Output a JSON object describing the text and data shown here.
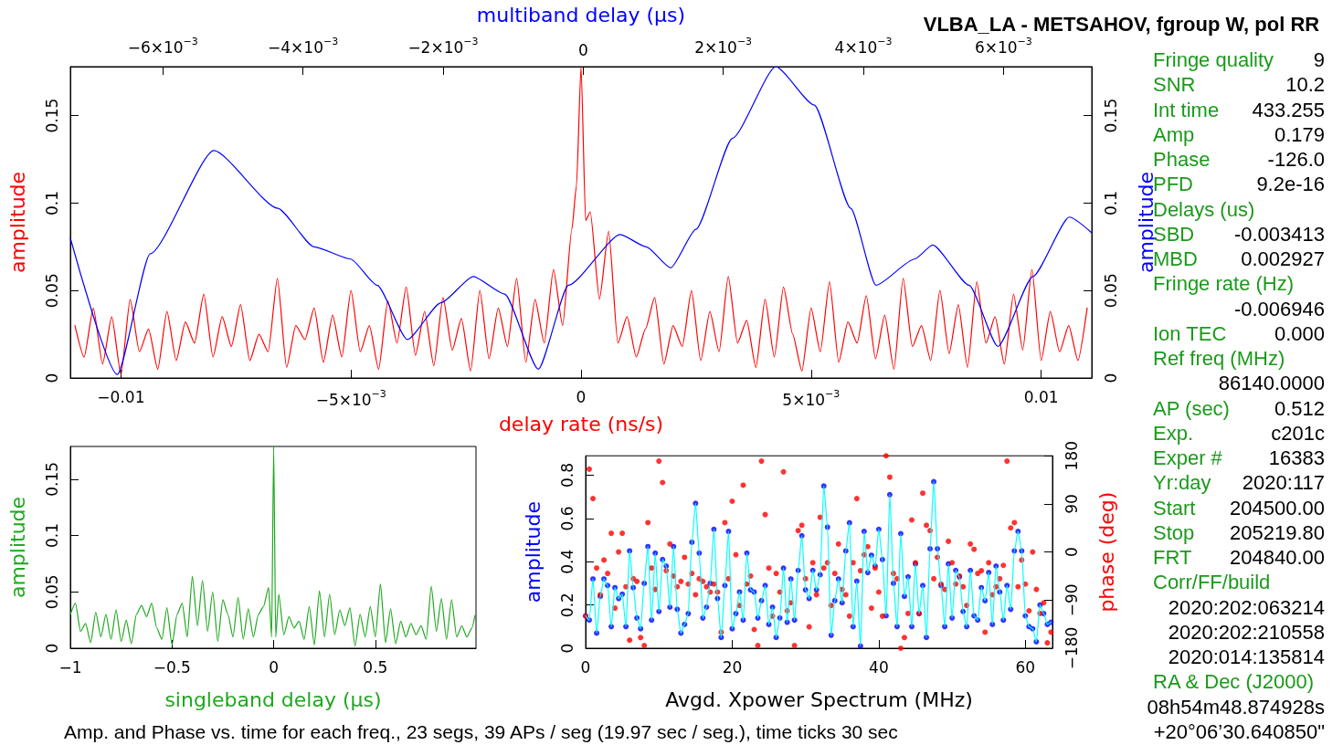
{
  "chart_data": [
    {
      "type": "line",
      "title": "VLBA_LA - METSAHOV, fgroup W, pol RR",
      "xlabel": "delay rate (ns/s)",
      "x2label": "multiband delay (μs)",
      "ylabel": "amplitude",
      "y2label": "amplitude",
      "marker": "none",
      "line_style": "solid",
      "grid": false,
      "xlim": [
        -0.0111,
        0.0111
      ],
      "xticks": [
        {
          "value": -0.01,
          "label": "−0.01"
        },
        {
          "value": -0.005,
          "label": "−5×10$^{−3}$"
        },
        0,
        {
          "value": 0.005,
          "label": "5×10$^{−3}$"
        },
        0.01
      ],
      "x2lim": [
        -0.00732,
        0.00726
      ],
      "x2ticks": [
        {
          "value": -0.006,
          "label": "−6×10$^{−3}$"
        },
        {
          "value": -0.004,
          "label": "−4×10$^{−3}$"
        },
        {
          "value": -0.002,
          "label": "−2×10$^{−3}$"
        },
        0,
        {
          "value": 0.002,
          "label": "2×10$^{−3}$"
        },
        {
          "value": 0.004,
          "label": "4×10$^{−3}$"
        },
        {
          "value": 0.006,
          "label": "6×10$^{−3}$"
        }
      ],
      "ylim": [
        0,
        0.178
      ],
      "yticks": [
        0,
        0.05,
        0.1,
        0.15
      ],
      "y2lim": [
        0,
        0.178
      ],
      "y2ticks": [
        0,
        0.05,
        0.1,
        0.15
      ],
      "series": [
        {
          "type": "line",
          "color": "#ff0000",
          "x": [
            -0.011,
            -0.0108,
            -0.0106,
            -0.0104,
            -0.0102,
            -0.01,
            -0.0098,
            -0.0096,
            -0.0094,
            -0.0092,
            -0.009,
            -0.0088,
            -0.0086,
            -0.0084,
            -0.0082,
            -0.008,
            -0.0078,
            -0.0076,
            -0.0074,
            -0.0072,
            -0.007,
            -0.0068,
            -0.0066,
            -0.0064,
            -0.0062,
            -0.006,
            -0.0058,
            -0.0056,
            -0.0054,
            -0.0052,
            -0.005,
            -0.0048,
            -0.0046,
            -0.0044,
            -0.0042,
            -0.004,
            -0.0038,
            -0.0036,
            -0.0034,
            -0.0032,
            -0.003,
            -0.0028,
            -0.0026,
            -0.0024,
            -0.0022,
            -0.002,
            -0.0018,
            -0.0016,
            -0.0014,
            -0.0012,
            -0.001,
            -0.0008,
            -0.0006,
            -0.0004,
            -0.0002,
            -0.0001,
            0,
            0.0001,
            0.0002,
            0.0004,
            0.0006,
            0.0008,
            0.001,
            0.0012,
            0.0014,
            0.0016,
            0.0018,
            0.002,
            0.0022,
            0.0024,
            0.0026,
            0.0028,
            0.003,
            0.0032,
            0.0034,
            0.0036,
            0.0038,
            0.004,
            0.0042,
            0.0044,
            0.0046,
            0.0048,
            0.005,
            0.0052,
            0.0054,
            0.0056,
            0.0058,
            0.006,
            0.0062,
            0.0064,
            0.0066,
            0.0068,
            0.007,
            0.0072,
            0.0074,
            0.0076,
            0.0078,
            0.008,
            0.0082,
            0.0084,
            0.0086,
            0.0088,
            0.009,
            0.0092,
            0.0094,
            0.0096,
            0.0098,
            0.01,
            0.0102,
            0.0104,
            0.0106,
            0.0108,
            0.011
          ],
          "values": [
            0.03,
            0.012,
            0.04,
            0.008,
            0.035,
            0.002,
            0.045,
            0.015,
            0.028,
            0.005,
            0.038,
            0.01,
            0.032,
            0.02,
            0.048,
            0.012,
            0.035,
            0.018,
            0.042,
            0.01,
            0.025,
            0.015,
            0.057,
            0.006,
            0.03,
            0.022,
            0.04,
            0.009,
            0.036,
            0.012,
            0.05,
            0.015,
            0.03,
            0.005,
            0.044,
            0.02,
            0.052,
            0.013,
            0.038,
            0.007,
            0.046,
            0.016,
            0.034,
            0.004,
            0.05,
            0.011,
            0.04,
            0.018,
            0.057,
            0.009,
            0.045,
            0.02,
            0.062,
            0.03,
            0.085,
            0.11,
            0.178,
            0.09,
            0.095,
            0.045,
            0.084,
            0.02,
            0.035,
            0.012,
            0.028,
            0.046,
            0.008,
            0.03,
            0.018,
            0.05,
            0.01,
            0.038,
            0.015,
            0.058,
            0.02,
            0.033,
            0.006,
            0.045,
            0.012,
            0.052,
            0.025,
            0.004,
            0.04,
            0.015,
            0.055,
            0.009,
            0.032,
            0.02,
            0.047,
            0.011,
            0.036,
            0.005,
            0.057,
            0.018,
            0.03,
            0.01,
            0.05,
            0.014,
            0.042,
            0.006,
            0.055,
            0.02,
            0.035,
            0.008,
            0.048,
            0.016,
            0.062,
            0.01,
            0.038,
            0.015,
            0.03,
            0.01,
            0.04
          ]
        },
        {
          "type": "line",
          "color": "#0000ff",
          "axis": "x2",
          "x": [
            -0.00732,
            -0.00665,
            -0.00618,
            -0.00527,
            -0.00436,
            -0.00384,
            -0.00332,
            -0.00294,
            -0.00251,
            -0.00203,
            -0.00157,
            -0.00112,
            -0.00064,
            -0.00021,
            0.00053,
            0.0009,
            0.00125,
            0.00161,
            0.00213,
            0.00275,
            0.0033,
            0.00382,
            0.00418,
            0.00473,
            0.00499,
            0.00551,
            0.00592,
            0.00642,
            0.00694,
            0.00726
          ],
          "values": [
            0.08,
            0.002,
            0.071,
            0.13,
            0.097,
            0.075,
            0.068,
            0.053,
            0.022,
            0.043,
            0.058,
            0.048,
            0.005,
            0.053,
            0.082,
            0.075,
            0.063,
            0.085,
            0.137,
            0.178,
            0.156,
            0.097,
            0.053,
            0.068,
            0.076,
            0.053,
            0.018,
            0.058,
            0.092,
            0.083
          ]
        }
      ]
    },
    {
      "type": "line",
      "xlabel": "singleband delay (μs)",
      "ylabel": "amplitude",
      "marker": "none",
      "line_style": "solid",
      "grid": false,
      "xlim": [
        -1,
        0.995
      ],
      "xticks": [
        {
          "value": -1,
          "label": "−1"
        },
        {
          "value": -0.5,
          "label": "−0.5"
        },
        0,
        0.5
      ],
      "ylim": [
        0,
        0.179
      ],
      "yticks": [
        0,
        0.05,
        0.1,
        0.15
      ],
      "series": [
        {
          "type": "line",
          "color": "#1fa81f",
          "x": [
            -1,
            -0.975,
            -0.95,
            -0.925,
            -0.9,
            -0.875,
            -0.85,
            -0.825,
            -0.8,
            -0.775,
            -0.75,
            -0.725,
            -0.7,
            -0.675,
            -0.65,
            -0.625,
            -0.6,
            -0.575,
            -0.55,
            -0.525,
            -0.5,
            -0.475,
            -0.45,
            -0.425,
            -0.4,
            -0.375,
            -0.35,
            -0.325,
            -0.3,
            -0.275,
            -0.25,
            -0.225,
            -0.2,
            -0.175,
            -0.15,
            -0.125,
            -0.1,
            -0.075,
            -0.05,
            -0.025,
            -0.01,
            0,
            0.01,
            0.025,
            0.05,
            0.075,
            0.1,
            0.125,
            0.15,
            0.175,
            0.2,
            0.225,
            0.25,
            0.275,
            0.3,
            0.325,
            0.35,
            0.375,
            0.4,
            0.425,
            0.45,
            0.475,
            0.5,
            0.525,
            0.55,
            0.575,
            0.6,
            0.625,
            0.65,
            0.675,
            0.7,
            0.725,
            0.75,
            0.775,
            0.8,
            0.825,
            0.85,
            0.875,
            0.9,
            0.925,
            0.95,
            0.975,
            0.99
          ],
          "values": [
            0.03,
            0.04,
            0.015,
            0.022,
            0.005,
            0.032,
            0.01,
            0.03,
            0.008,
            0.034,
            0.006,
            0.025,
            0.004,
            0.03,
            0.038,
            0.028,
            0.04,
            0.018,
            0.008,
            0.036,
            0.003,
            0.03,
            0.04,
            0.01,
            0.064,
            0.02,
            0.06,
            0.015,
            0.05,
            0.006,
            0.043,
            0.03,
            0.01,
            0.045,
            0.008,
            0.035,
            0.01,
            0.03,
            0.037,
            0.054,
            0.01,
            0.179,
            0.01,
            0.048,
            0.012,
            0.028,
            0.018,
            0.024,
            0.008,
            0.037,
            0.003,
            0.051,
            0.01,
            0.048,
            0.012,
            0.034,
            0.02,
            0.036,
            0.002,
            0.03,
            0.01,
            0.037,
            0.01,
            0.057,
            0.005,
            0.035,
            0.004,
            0.024,
            0.01,
            0.022,
            0.012,
            0.02,
            0.008,
            0.055,
            0.015,
            0.044,
            0.008,
            0.043,
            0.01,
            0.02,
            0.01,
            0.018,
            0.029
          ]
        }
      ]
    },
    {
      "type": "line",
      "xlabel": "Avgd. Xpower Spectrum (MHz)",
      "ylabel": "amplitude",
      "y2label": "phase (deg)",
      "grid": false,
      "xlim": [
        0,
        63.7
      ],
      "xticks": [
        0,
        20,
        40,
        60
      ],
      "ylim": [
        0,
        0.89
      ],
      "yticks": [
        0,
        0.2,
        0.4,
        0.6,
        0.8
      ],
      "y2lim": [
        -180,
        180
      ],
      "y2ticks": [
        {
          "value": -180,
          "label": "−180"
        },
        {
          "value": -90,
          "label": "−90"
        },
        0,
        90,
        180
      ],
      "x": [
        0,
        0.5,
        1,
        1.5,
        2,
        2.5,
        3,
        3.5,
        4,
        4.5,
        5,
        5.5,
        6,
        6.5,
        7,
        7.5,
        8,
        8.5,
        9,
        9.5,
        10,
        10.5,
        11,
        11.5,
        12,
        12.5,
        13,
        13.5,
        14,
        14.5,
        15,
        15.5,
        16,
        16.5,
        17,
        17.5,
        18,
        18.5,
        19,
        19.5,
        20,
        20.5,
        21,
        21.5,
        22,
        22.5,
        23,
        23.5,
        24,
        24.5,
        25,
        25.5,
        26,
        26.5,
        27,
        27.5,
        28,
        28.5,
        29,
        29.5,
        30,
        30.5,
        31,
        31.5,
        32,
        32.5,
        33,
        33.5,
        34,
        34.5,
        35,
        35.5,
        36,
        36.5,
        37,
        37.5,
        38,
        38.5,
        39,
        39.5,
        40,
        40.5,
        41,
        41.5,
        42,
        42.5,
        43,
        43.5,
        44,
        44.5,
        45,
        45.5,
        46,
        46.5,
        47,
        47.5,
        48,
        48.5,
        49,
        49.5,
        50,
        50.5,
        51,
        51.5,
        52,
        52.5,
        53,
        53.5,
        54,
        54.5,
        55,
        55.5,
        56,
        56.5,
        57,
        57.5,
        58,
        58.5,
        59,
        59.5,
        60,
        60.5,
        61,
        61.5,
        62,
        62.5,
        63,
        63.5
      ],
      "series": [
        {
          "type": "line",
          "color": "#00ffff",
          "marker": "none",
          "line_style": "solid",
          "values": [
            0.15,
            0.13,
            0.32,
            0.07,
            0.24,
            0.32,
            0.29,
            0.1,
            0.28,
            0.23,
            0.25,
            0.1,
            0.45,
            0.28,
            0.14,
            0.09,
            0.3,
            0.47,
            0.13,
            0.44,
            0.17,
            0.41,
            0.38,
            0.19,
            0.47,
            0.18,
            0.07,
            0.11,
            0.16,
            0.49,
            0.67,
            0.44,
            0.14,
            0.19,
            0.3,
            0.55,
            0.23,
            0.05,
            0.29,
            0.54,
            0.09,
            0.16,
            0.26,
            0.13,
            0.44,
            0.27,
            0.26,
            0.14,
            0.22,
            0.29,
            0.11,
            0.19,
            0.05,
            0.14,
            0.37,
            0.12,
            0.32,
            0.13,
            0.36,
            0.52,
            0.27,
            0.23,
            0.36,
            0.27,
            0.34,
            0.75,
            0.56,
            0.06,
            0.22,
            0.32,
            0.21,
            0.45,
            0.58,
            0.1,
            0.31,
            0.01,
            0.54,
            0.35,
            0.43,
            0.38,
            0.55,
            0.41,
            0.15,
            0.71,
            0.3,
            0.1,
            0.53,
            0.24,
            0.33,
            0.1,
            0.39,
            0.16,
            0.29,
            0.05,
            0.46,
            0.77,
            0.46,
            0.29,
            0.1,
            0.39,
            0.14,
            0.36,
            0.33,
            0.17,
            0.1,
            0.36,
            0.15,
            0.13,
            0.28,
            0.22,
            0.35,
            0.11,
            0.38,
            0.26,
            0.13,
            0.29,
            0.18,
            0.45,
            0.54,
            0.45,
            0.15,
            0.1,
            0.09,
            0.03,
            0.2,
            0.16,
            0.11,
            0.12
          ]
        },
        {
          "type": "scatter",
          "color": "#0000ff",
          "marker": "circle",
          "values": [
            0.15,
            0.13,
            0.32,
            0.07,
            0.24,
            0.32,
            0.29,
            0.1,
            0.28,
            0.23,
            0.25,
            0.1,
            0.45,
            0.28,
            0.14,
            0.09,
            0.3,
            0.47,
            0.13,
            0.44,
            0.17,
            0.41,
            0.38,
            0.19,
            0.47,
            0.18,
            0.07,
            0.11,
            0.16,
            0.49,
            0.67,
            0.44,
            0.14,
            0.19,
            0.3,
            0.55,
            0.23,
            0.05,
            0.29,
            0.54,
            0.09,
            0.16,
            0.26,
            0.13,
            0.44,
            0.27,
            0.26,
            0.14,
            0.22,
            0.29,
            0.11,
            0.19,
            0.05,
            0.14,
            0.37,
            0.12,
            0.32,
            0.13,
            0.36,
            0.52,
            0.27,
            0.23,
            0.36,
            0.27,
            0.34,
            0.75,
            0.56,
            0.06,
            0.22,
            0.32,
            0.21,
            0.45,
            0.58,
            0.1,
            0.31,
            0.01,
            0.54,
            0.35,
            0.43,
            0.38,
            0.55,
            0.41,
            0.15,
            0.71,
            0.3,
            0.1,
            0.53,
            0.24,
            0.33,
            0.1,
            0.39,
            0.16,
            0.29,
            0.05,
            0.46,
            0.77,
            0.46,
            0.29,
            0.1,
            0.39,
            0.14,
            0.36,
            0.33,
            0.17,
            0.1,
            0.36,
            0.15,
            0.13,
            0.28,
            0.22,
            0.35,
            0.11,
            0.38,
            0.26,
            0.13,
            0.29,
            0.18,
            0.45,
            0.54,
            0.45,
            0.15,
            0.1,
            0.09,
            0.03,
            0.2,
            0.16,
            0.11,
            0.12
          ]
        },
        {
          "type": "scatter",
          "color": "#ff0000",
          "marker": "circle",
          "axis": "y2",
          "values": [
            -120,
            155,
            100,
            -30,
            -80,
            -15,
            -40,
            35,
            -105,
            0,
            35,
            -65,
            -165,
            -50,
            -55,
            -160,
            -175,
            55,
            -30,
            -70,
            170,
            130,
            -35,
            15,
            -45,
            -65,
            -55,
            -10,
            -60,
            -40,
            -80,
            -50,
            -55,
            -65,
            -75,
            -60,
            -75,
            -150,
            55,
            -50,
            95,
            -5,
            -100,
            125,
            -60,
            -45,
            -145,
            -175,
            170,
            70,
            -30,
            -120,
            -40,
            -75,
            150,
            -110,
            -95,
            -175,
            40,
            50,
            -50,
            -140,
            -20,
            -80,
            65,
            -30,
            -20,
            -100,
            -40,
            15,
            -70,
            -80,
            -120,
            -20,
            100,
            -35,
            -5,
            10,
            -105,
            -30,
            -75,
            -120,
            180,
            140,
            -40,
            -50,
            -180,
            -160,
            -115,
            60,
            -20,
            -115,
            110,
            50,
            40,
            -50,
            -10,
            -60,
            -70,
            20,
            -20,
            -60,
            -45,
            -65,
            -100,
            15,
            5,
            -40,
            -35,
            -150,
            -20,
            -80,
            -65,
            -50,
            -25,
            170,
            45,
            55,
            -65,
            -15,
            -60,
            -110,
            0,
            -70,
            -115,
            -95,
            -170,
            -150
          ]
        }
      ]
    },
    {
      "type": "other",
      "color": "#1a9a1a",
      "categories": [
        "Fringe quality",
        "SNR",
        "Int time",
        "Amp",
        "Phase",
        "PFD",
        "Delays (us)",
        "SBD",
        "MBD",
        "Fringe rate (Hz)",
        null,
        "Ion TEC",
        "Ref freq (MHz)",
        null,
        "AP (sec)",
        "Exp.",
        "Exper #",
        "Yr:day",
        "Start",
        "Stop",
        "FRT",
        "Corr/FF/build",
        null,
        null,
        null,
        "RA & Dec (J2000)",
        null,
        null
      ],
      "value_labels": [
        "9",
        "10.2",
        "433.255",
        "0.179",
        "-126.0",
        "9.2e-16",
        null,
        "-0.003413",
        "0.002927",
        null,
        "-0.006946",
        "0.000",
        null,
        "86140.0000",
        "0.512",
        "c201c",
        "16383",
        "2020:117",
        "204500.00",
        "205219.80",
        "204840.00",
        null,
        "2020:202:063214",
        "2020:202:210558",
        "2020:014:135814",
        null,
        "08h54m48.874928s",
        "+20°06’30.640850\""
      ],
      "annotations": [
        "Amp. and Phase vs. time for each freq., 23 segs, 39 APs / seg (19.97 sec / seg.), time ticks 30 sec"
      ]
    }
  ]
}
